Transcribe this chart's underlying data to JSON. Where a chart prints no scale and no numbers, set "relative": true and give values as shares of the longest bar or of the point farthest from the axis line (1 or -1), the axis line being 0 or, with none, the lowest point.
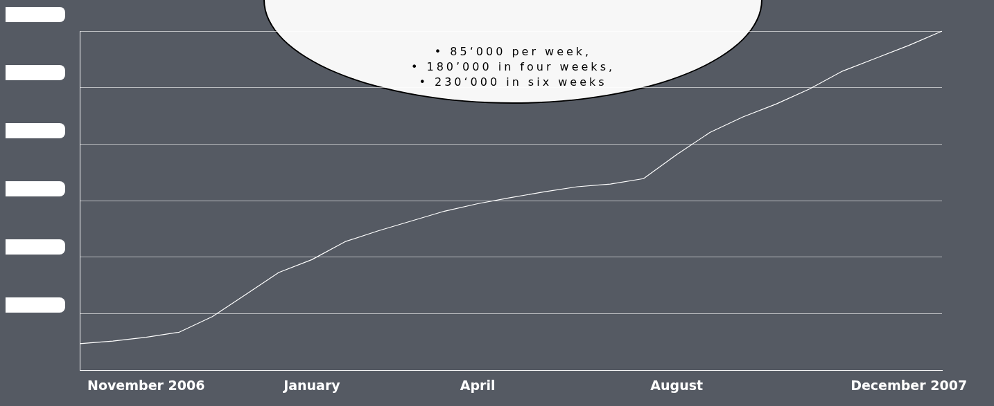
{
  "chart_data": {
    "type": "line",
    "relative": true,
    "grid": "y",
    "legend": false,
    "marker": "none",
    "line_style": "solid",
    "categories": [
      null,
      null,
      "November 2006",
      null,
      null,
      null,
      null,
      "January",
      null,
      null,
      null,
      null,
      "April",
      null,
      null,
      null,
      null,
      null,
      "August",
      null,
      null,
      null,
      null,
      null,
      null,
      "December 2007",
      null
    ],
    "series": [
      {
        "color": "#ffffff",
        "values": [
          0.078,
          0.086,
          0.097,
          0.112,
          0.158,
          0.223,
          0.288,
          0.326,
          0.379,
          0.411,
          0.44,
          0.469,
          0.491,
          0.509,
          0.526,
          0.541,
          0.549,
          0.565,
          0.636,
          0.701,
          0.747,
          0.785,
          0.829,
          0.882,
          0.92,
          0.958,
          1
        ]
      }
    ],
    "annotations": [
      "• 85‘000 per week,",
      "• 180’000 in four weeks,",
      "• 230‘000 in six weeks"
    ]
  }
}
